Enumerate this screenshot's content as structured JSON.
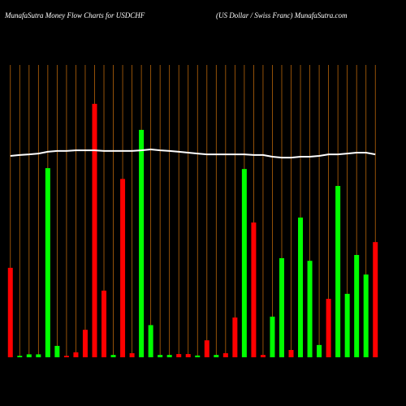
{
  "chart_data": {
    "type": "bar",
    "title": "MunafaSutra  Money Flow  Charts for USDCHF",
    "subtitle": "(US Dollar / Swiss Franc) MunafaSutra.com",
    "categories": [
      null,
      null,
      null,
      null,
      null,
      null,
      null,
      null,
      null,
      null,
      null,
      null,
      null,
      null,
      null,
      null,
      null,
      null,
      null,
      null,
      null,
      null,
      null,
      null,
      null,
      null,
      null,
      null,
      null,
      null,
      null,
      null,
      null,
      null,
      null,
      null,
      null,
      null,
      null,
      null
    ],
    "ylim": [
      0,
      100
    ],
    "grid": true,
    "series": [
      {
        "type": "bar",
        "colors": [
          "#ff0000",
          "#00ff00",
          "#00ff00",
          "#00ff00",
          "#00ff00",
          "#00ff00",
          "#ff0000",
          "#ff0000",
          "#ff0000",
          "#ff0000",
          "#ff0000",
          "#00ff00",
          "#ff0000",
          "#ff0000",
          "#00ff00",
          "#00ff00",
          "#00ff00",
          "#00ff00",
          "#ff0000",
          "#ff0000",
          "#00ff00",
          "#ff0000",
          "#00ff00",
          "#ff0000",
          "#ff0000",
          "#00ff00",
          "#ff0000",
          "#ff0000",
          "#00ff00",
          "#00ff00",
          "#ff0000",
          "#00ff00",
          "#00ff00",
          "#00ff00",
          "#ff0000",
          "#00ff00",
          "#00ff00",
          "#00ff00",
          "#00ff00",
          "#ff0000"
        ],
        "values": [
          30.6,
          0.5,
          1,
          1,
          64.7,
          3.9,
          0.5,
          1.7,
          9.4,
          86.7,
          22.8,
          0.8,
          61,
          1.4,
          77.8,
          11,
          0.8,
          0.8,
          1.1,
          1.1,
          0.6,
          5.8,
          0.8,
          1.4,
          13.6,
          64.4,
          46.1,
          0.8,
          13.9,
          33.9,
          2.5,
          47.8,
          33,
          4.2,
          20,
          58.6,
          21.7,
          35,
          28.3,
          39.4
        ]
      },
      {
        "type": "line",
        "color": "#ffffff",
        "values": [
          68.9,
          69.2,
          69.4,
          69.7,
          70.3,
          70.6,
          70.6,
          70.8,
          70.8,
          70.8,
          70.6,
          70.6,
          70.6,
          70.6,
          70.8,
          71.1,
          70.8,
          70.6,
          70.3,
          70,
          69.7,
          69.4,
          69.4,
          69.4,
          69.4,
          69.4,
          69.2,
          69.2,
          68.6,
          68.3,
          68.3,
          68.6,
          68.6,
          68.9,
          69.4,
          69.4,
          69.7,
          70,
          70,
          69.4
        ]
      }
    ]
  }
}
